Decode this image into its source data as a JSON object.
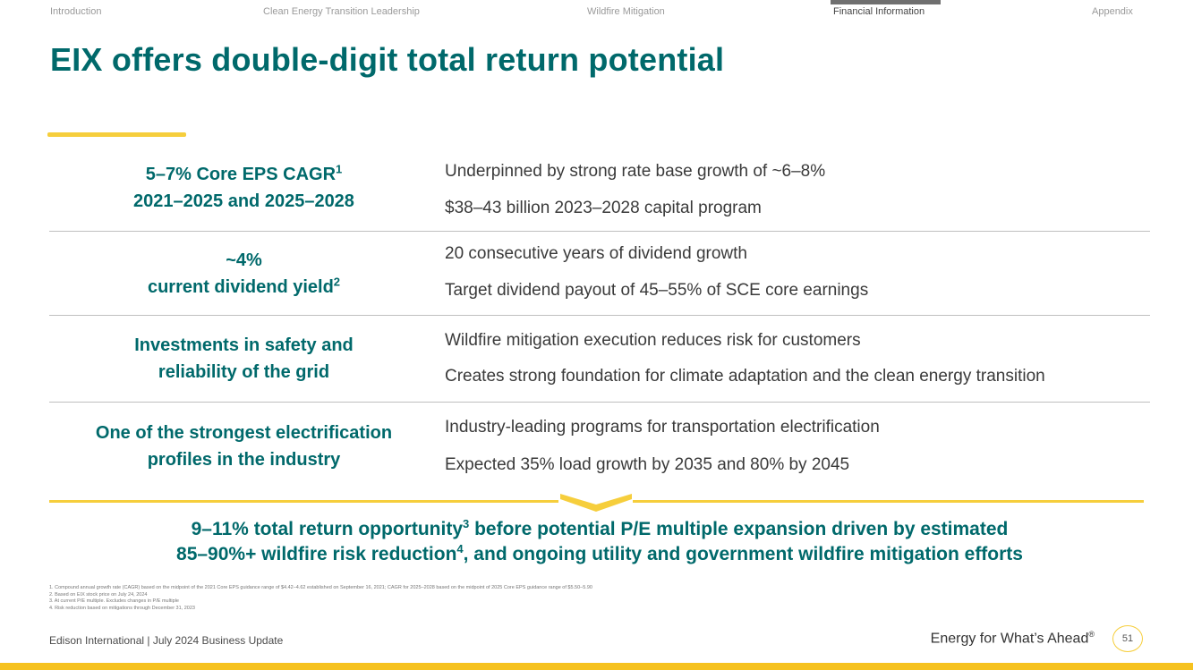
{
  "nav": {
    "items": [
      "Introduction",
      "Clean Energy Transition Leadership",
      "Wildfire Mitigation",
      "Financial Information",
      "Appendix"
    ],
    "active": "Financial Information"
  },
  "title": "EIX offers double-digit total return potential",
  "rows": [
    {
      "left_line1": "5–7% Core EPS CAGR",
      "left_line1_sup": "1",
      "left_line2": "2021–2025 and 2025–2028",
      "points": [
        "Underpinned by strong rate base growth of ~6–8%",
        "$38–43 billion 2023–2028 capital program"
      ]
    },
    {
      "left_line1": "~4%",
      "left_line2": "current dividend yield",
      "left_line2_sup": "2",
      "points": [
        "20 consecutive years of dividend growth",
        "Target dividend payout of 45–55% of SCE core earnings"
      ]
    },
    {
      "left_line1": "Investments in safety and",
      "left_line2": "reliability of the grid",
      "points": [
        "Wildfire mitigation execution reduces risk for customers",
        "Creates strong foundation for climate adaptation and the clean energy transition"
      ]
    },
    {
      "left_line1": "One of the strongest electrification",
      "left_line2": "profiles in the industry",
      "points": [
        "Industry-leading programs for transportation electrification",
        "Expected 35% load growth by 2035 and 80% by 2045"
      ]
    }
  ],
  "summary": {
    "part1": "9–11% total return opportunity",
    "sup1": "3",
    "part2": " before potential P/E multiple expansion driven by estimated",
    "part3": "85–90%+ wildfire risk reduction",
    "sup2": "4",
    "part4": ", and ongoing utility and government wildfire mitigation efforts"
  },
  "footnotes": [
    "1.  Compound annual growth rate (CAGR) based on the midpoint of the 2021 Core EPS guidance range of $4.42–4.62 established on September 16, 2021; CAGR for 2025–2028 based on the midpoint of 2025 Core EPS guidance range of $5.50–5.90",
    "2.  Based on EIX stock price on July 24, 2024",
    "3.  At current P/E multiple. Excludes changes in P/E multiple",
    "4.  Risk reduction based on mitigations through December 31, 2023"
  ],
  "footer": {
    "left": "Edison International | July 2024 Business Update",
    "tagline": "Energy for What’s Ahead",
    "tagline_mark": "®",
    "page_number": "51"
  },
  "colors": {
    "teal": "#00696b",
    "gold": "#f6ce3c",
    "bar": "#f6c21f"
  }
}
